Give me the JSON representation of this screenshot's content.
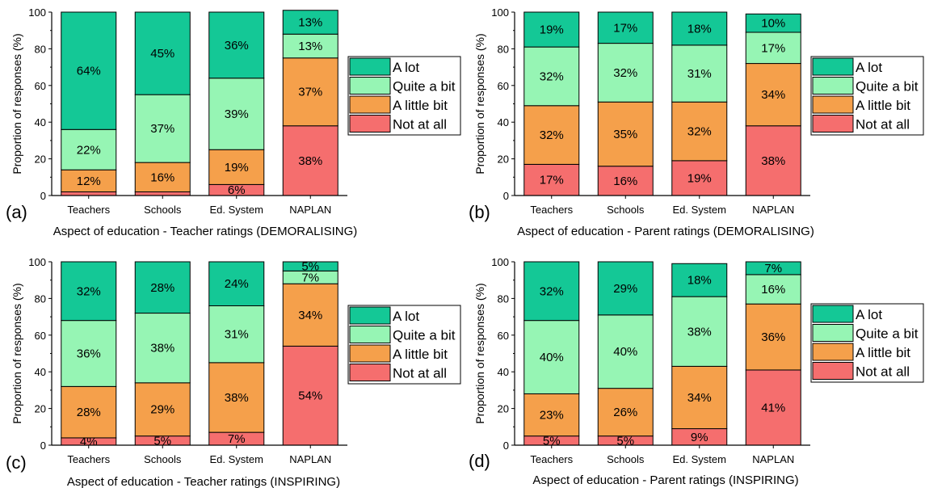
{
  "colors": {
    "A lot": "#14C896",
    "Quite a bit": "#96F5B4",
    "A little bit": "#F5A04B",
    "Not at all": "#F56E6E"
  },
  "chart_data": [
    {
      "type": "bar",
      "stacked": true,
      "panel_label": "(a)",
      "xlabel": "Aspect of education - Teacher ratings (DEMORALISING)",
      "ylabel": "Proportion of responses (%)",
      "ylim": [
        0,
        100
      ],
      "yticks": [
        0,
        20,
        40,
        60,
        80,
        100
      ],
      "categories": [
        "Teachers",
        "Schools",
        "Ed. System",
        "NAPLAN"
      ],
      "legend_position": "right",
      "series": [
        {
          "name": "Not at all",
          "values": [
            2,
            2,
            6,
            38
          ],
          "labels": [
            "",
            "",
            "6%",
            "38%"
          ]
        },
        {
          "name": "A little bit",
          "values": [
            12,
            16,
            19,
            37
          ],
          "labels": [
            "12%",
            "16%",
            "19%",
            "37%"
          ]
        },
        {
          "name": "Quite a bit",
          "values": [
            22,
            37,
            39,
            13
          ],
          "labels": [
            "22%",
            "37%",
            "39%",
            "13%"
          ]
        },
        {
          "name": "A lot",
          "values": [
            64,
            45,
            36,
            13
          ],
          "labels": [
            "64%",
            "45%",
            "36%",
            "13%"
          ]
        }
      ]
    },
    {
      "type": "bar",
      "stacked": true,
      "panel_label": "(b)",
      "xlabel": "Aspect of education - Parent ratings (DEMORALISING)",
      "ylabel": "Proportion of responses (%)",
      "ylim": [
        0,
        100
      ],
      "yticks": [
        0,
        20,
        40,
        60,
        80,
        100
      ],
      "categories": [
        "Teachers",
        "Schools",
        "Ed. System",
        "NAPLAN"
      ],
      "legend_position": "right",
      "series": [
        {
          "name": "Not at all",
          "values": [
            17,
            16,
            19,
            38
          ],
          "labels": [
            "17%",
            "16%",
            "19%",
            "38%"
          ]
        },
        {
          "name": "A little bit",
          "values": [
            32,
            35,
            32,
            34
          ],
          "labels": [
            "32%",
            "35%",
            "32%",
            "34%"
          ]
        },
        {
          "name": "Quite a bit",
          "values": [
            32,
            32,
            31,
            17
          ],
          "labels": [
            "32%",
            "32%",
            "31%",
            "17%"
          ]
        },
        {
          "name": "A lot",
          "values": [
            19,
            17,
            18,
            10
          ],
          "labels": [
            "19%",
            "17%",
            "18%",
            "10%"
          ]
        }
      ]
    },
    {
      "type": "bar",
      "stacked": true,
      "panel_label": "(c)",
      "xlabel": "Aspect of education - Teacher ratings (INSPIRING)",
      "ylabel": "Proportion of responses (%)",
      "ylim": [
        0,
        100
      ],
      "yticks": [
        0,
        20,
        40,
        60,
        80,
        100
      ],
      "categories": [
        "Teachers",
        "Schools",
        "Ed. System",
        "NAPLAN"
      ],
      "legend_position": "right",
      "series": [
        {
          "name": "Not at all",
          "values": [
            4,
            5,
            7,
            54
          ],
          "labels": [
            "4%",
            "5%",
            "7%",
            "54%"
          ]
        },
        {
          "name": "A little bit",
          "values": [
            28,
            29,
            38,
            34
          ],
          "labels": [
            "28%",
            "29%",
            "38%",
            "34%"
          ]
        },
        {
          "name": "Quite a bit",
          "values": [
            36,
            38,
            31,
            7
          ],
          "labels": [
            "36%",
            "38%",
            "31%",
            "7%"
          ]
        },
        {
          "name": "A lot",
          "values": [
            32,
            28,
            24,
            5
          ],
          "labels": [
            "32%",
            "28%",
            "24%",
            "5%"
          ]
        }
      ]
    },
    {
      "type": "bar",
      "stacked": true,
      "panel_label": "(d)",
      "xlabel": "Aspect of education - Parent ratings (INSPIRING)",
      "ylabel": "Proportion of responses (%)",
      "ylim": [
        0,
        100
      ],
      "yticks": [
        0,
        20,
        40,
        60,
        80,
        100
      ],
      "categories": [
        "Teachers",
        "Schools",
        "Ed. System",
        "NAPLAN"
      ],
      "legend_position": "right",
      "series": [
        {
          "name": "Not at all",
          "values": [
            5,
            5,
            9,
            41
          ],
          "labels": [
            "5%",
            "5%",
            "9%",
            "41%"
          ]
        },
        {
          "name": "A little bit",
          "values": [
            23,
            26,
            34,
            36
          ],
          "labels": [
            "23%",
            "26%",
            "34%",
            "36%"
          ]
        },
        {
          "name": "Quite a bit",
          "values": [
            40,
            40,
            38,
            16
          ],
          "labels": [
            "40%",
            "40%",
            "38%",
            "16%"
          ]
        },
        {
          "name": "A lot",
          "values": [
            32,
            29,
            18,
            7
          ],
          "labels": [
            "32%",
            "29%",
            "18%",
            "7%"
          ]
        }
      ]
    }
  ]
}
